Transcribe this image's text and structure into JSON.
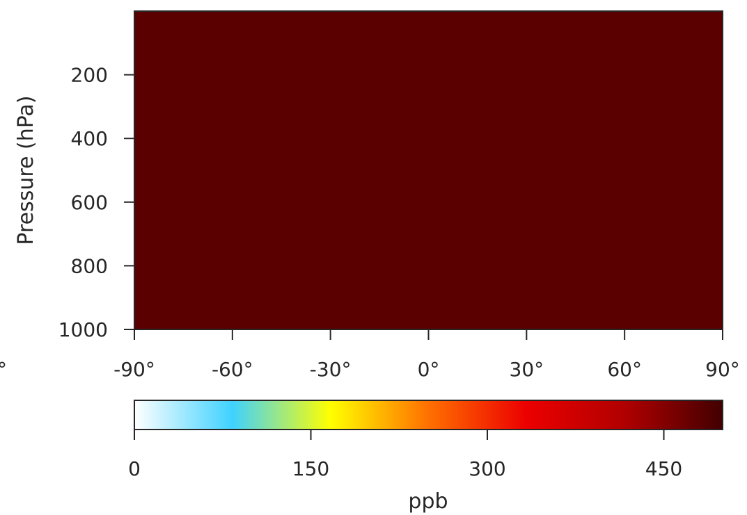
{
  "chart_data": {
    "type": "heatmap",
    "title": "",
    "xlabel": "",
    "ylabel": "Pressure (hPa)",
    "x_ticks": [
      "-90°",
      "-60°",
      "-30°",
      "0°",
      "30°",
      "60°",
      "90°"
    ],
    "x_tick_values": [
      -90,
      -60,
      -30,
      0,
      30,
      60,
      90
    ],
    "xlim": [
      -90,
      90
    ],
    "y_ticks": [
      "200",
      "400",
      "600",
      "800",
      "1000"
    ],
    "y_tick_values": [
      200,
      400,
      600,
      800,
      1000
    ],
    "ylim": [
      1000,
      0
    ],
    "field_value": 500,
    "cell_color": "#5a0000",
    "colorbar": {
      "label": "ppb",
      "ticks": [
        "0",
        "150",
        "300",
        "450"
      ],
      "tick_values": [
        0,
        150,
        300,
        450
      ],
      "range": [
        0,
        500
      ],
      "colormap": [
        "#ffffff",
        "#3fd2ff",
        "#ffff00",
        "#ff7000",
        "#ec0000",
        "#b00000",
        "#420000"
      ]
    },
    "grid": false,
    "legend": "none"
  },
  "clipped_left_tick": "°"
}
